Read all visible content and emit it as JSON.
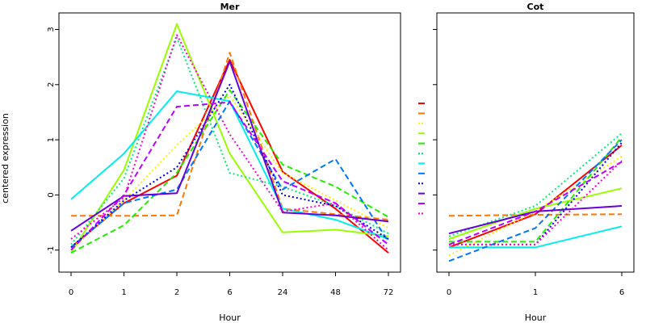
{
  "chart_data": {
    "ylabel": "centered expression",
    "ylim": [
      -1.4,
      3.3
    ],
    "y_ticks": [
      -1,
      0,
      1,
      2,
      3
    ],
    "colors": [
      "#ff0000",
      "#ff7700",
      "#ffee00",
      "#99ff00",
      "#22ee00",
      "#00ee77",
      "#00eeee",
      "#0077ff",
      "#0000ff",
      "#6600dd",
      "#bb00ff",
      "#ff00cc"
    ],
    "dashes": [
      "solid",
      "longdash",
      "dotted",
      "solid",
      "longdash",
      "dotted",
      "solid",
      "longdash",
      "dotted",
      "solid",
      "longdash",
      "dotted"
    ],
    "panels": [
      {
        "title": "Mer",
        "type": "line",
        "xlabel": "Hour",
        "categories": [
          "0",
          "1",
          "2",
          "6",
          "24",
          "48",
          "72"
        ],
        "series": [
          {
            "values": [
              -0.95,
              -0.15,
              0.35,
              2.45,
              0.42,
              -0.25,
              -1.05
            ]
          },
          {
            "values": [
              -0.38,
              -0.38,
              -0.37,
              2.58,
              -0.25,
              -0.35,
              -0.45
            ]
          },
          {
            "values": [
              -1.0,
              -0.1,
              0.9,
              1.8,
              0.4,
              -0.1,
              -0.6
            ]
          },
          {
            "values": [
              -1.05,
              0.45,
              3.1,
              0.75,
              -0.68,
              -0.63,
              -0.75
            ]
          },
          {
            "values": [
              -1.05,
              -0.55,
              0.4,
              1.9,
              0.55,
              0.15,
              -0.4
            ]
          },
          {
            "values": [
              -0.9,
              0.3,
              2.85,
              0.4,
              0.15,
              -0.2,
              -0.7
            ]
          },
          {
            "values": [
              -0.08,
              0.75,
              1.88,
              1.7,
              -0.25,
              -0.45,
              -0.8
            ]
          },
          {
            "values": [
              -0.95,
              -0.15,
              0.1,
              1.7,
              0.1,
              0.65,
              -0.85
            ]
          },
          {
            "values": [
              -0.95,
              -0.1,
              0.5,
              2.0,
              0.0,
              -0.2,
              -0.8
            ]
          },
          {
            "values": [
              -0.65,
              -0.02,
              0.03,
              2.42,
              -0.32,
              -0.37,
              -0.48
            ]
          },
          {
            "values": [
              -1.0,
              0.0,
              1.6,
              1.68,
              0.25,
              -0.15,
              -0.9
            ]
          },
          {
            "values": [
              -0.8,
              -0.05,
              2.9,
              1.1,
              -0.3,
              -0.15,
              -1.0
            ]
          }
        ]
      },
      {
        "title": "Cot",
        "type": "line",
        "xlabel": "Hour",
        "categories": [
          "0",
          "1",
          "6"
        ],
        "series": [
          {
            "values": [
              -0.95,
              -0.35,
              0.9
            ]
          },
          {
            "values": [
              -0.38,
              -0.36,
              -0.35
            ]
          },
          {
            "values": [
              -1.1,
              -0.3,
              0.7
            ]
          },
          {
            "values": [
              -0.8,
              -0.25,
              0.12
            ]
          },
          {
            "values": [
              -0.85,
              -0.85,
              1.05
            ]
          },
          {
            "values": [
              -0.75,
              -0.2,
              1.12
            ]
          },
          {
            "values": [
              -0.95,
              -0.95,
              -0.57
            ]
          },
          {
            "values": [
              -1.2,
              -0.6,
              1.0
            ]
          },
          {
            "values": [
              -0.9,
              -0.9,
              0.95
            ]
          },
          {
            "values": [
              -0.7,
              -0.3,
              -0.2
            ]
          },
          {
            "values": [
              -0.9,
              -0.3,
              0.6
            ]
          },
          {
            "values": [
              -0.9,
              -0.9,
              0.62
            ]
          }
        ]
      }
    ]
  }
}
